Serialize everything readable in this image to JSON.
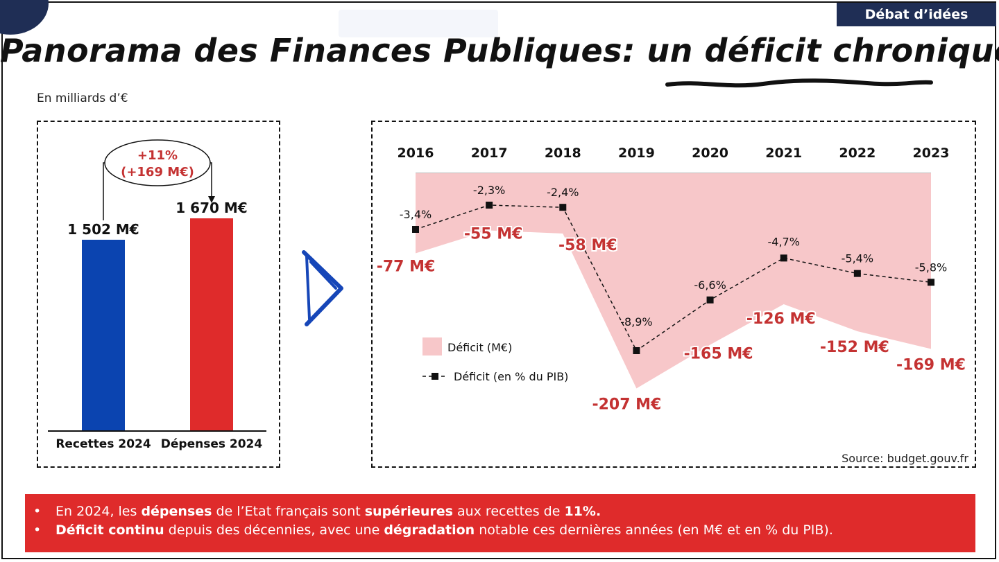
{
  "badge": "Débat d’idées",
  "title": {
    "prefix": "Panorama des Finances Publiques: un ",
    "emphasis": "déficit chronique"
  },
  "units_label": "En milliards d’€",
  "colors": {
    "navy": "#1f2e55",
    "blue_bar": "#0b44b0",
    "red_bar": "#df2b2b",
    "deficit_fill": "#f7c7c9",
    "label_red": "#c43232",
    "bottom_bar": "#df2b2b"
  },
  "chart_data": [
    {
      "type": "bar",
      "categories": [
        "Recettes 2024",
        "Dépenses 2024"
      ],
      "values": [
        1502,
        1670
      ],
      "value_labels": [
        "1 502 M€",
        "1 670 M€"
      ],
      "colors": [
        "#0b44b0",
        "#df2b2b"
      ],
      "annotation": {
        "line1": "+11%",
        "line2": "(+169 M€)"
      },
      "ylim": [
        0,
        1850
      ]
    },
    {
      "type": "area",
      "x": [
        "2016",
        "2017",
        "2018",
        "2019",
        "2020",
        "2021",
        "2022",
        "2023"
      ],
      "series": [
        {
          "name": "Déficit (M€)",
          "type": "area",
          "values": [
            -77,
            -55,
            -58,
            -207,
            -165,
            -126,
            -152,
            -169
          ],
          "labels": [
            "-77 M€",
            "-55 M€",
            "-58 M€",
            "-207 M€",
            "-165 M€",
            "-126 M€",
            "-152 M€",
            "-169 M€"
          ]
        },
        {
          "name": "Déficit (en % du PIB)",
          "type": "line",
          "values": [
            -3.4,
            -2.3,
            -2.4,
            -8.9,
            -6.6,
            -4.7,
            -5.4,
            -5.8
          ],
          "labels": [
            "-3,4%",
            "-2,3%",
            "-2,4%",
            "-8,9%",
            "-6,6%",
            "-4,7%",
            "-5,4%",
            "-5,8%"
          ]
        }
      ],
      "legend": "left",
      "ylim_area": [
        -240,
        0
      ],
      "ylim_pct": [
        -10,
        0
      ]
    }
  ],
  "source": "Source: budget.gouv.fr",
  "bullets": [
    {
      "segments": [
        {
          "text": "En 2024, les ",
          "bold": false
        },
        {
          "text": "dépenses",
          "bold": true
        },
        {
          "text": " de l’Etat français sont ",
          "bold": false
        },
        {
          "text": "supérieures",
          "bold": true
        },
        {
          "text": " aux recettes de ",
          "bold": false
        },
        {
          "text": "11%.",
          "bold": true
        }
      ]
    },
    {
      "segments": [
        {
          "text": "Déficit continu",
          "bold": true
        },
        {
          "text": " depuis des décennies, avec une ",
          "bold": false
        },
        {
          "text": "dégradation",
          "bold": true
        },
        {
          "text": " notable ces dernières années (en M€ et en % du PIB).",
          "bold": false
        }
      ]
    }
  ]
}
